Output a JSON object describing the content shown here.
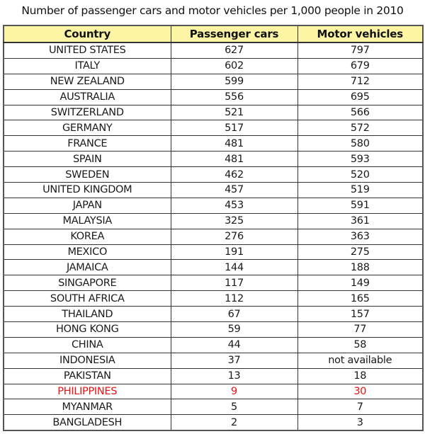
{
  "title": "Number of passenger cars and motor vehicles per 1,000 people in 2010",
  "colors": {
    "header_background": "#fdf5a4",
    "highlight_text": "#ee1111",
    "border": "#333333"
  },
  "table": {
    "headers": [
      "Country",
      "Passenger cars",
      "Motor vehicles"
    ],
    "highlighted_row": "PHILIPPINES",
    "rows": [
      {
        "country": "UNITED STATES",
        "passenger_cars": "627",
        "motor_vehicles": "797"
      },
      {
        "country": "ITALY",
        "passenger_cars": "602",
        "motor_vehicles": "679"
      },
      {
        "country": "NEW ZEALAND",
        "passenger_cars": "599",
        "motor_vehicles": "712"
      },
      {
        "country": "AUSTRALIA",
        "passenger_cars": "556",
        "motor_vehicles": "695"
      },
      {
        "country": "SWITZERLAND",
        "passenger_cars": "521",
        "motor_vehicles": "566"
      },
      {
        "country": "GERMANY",
        "passenger_cars": "517",
        "motor_vehicles": "572"
      },
      {
        "country": "FRANCE",
        "passenger_cars": "481",
        "motor_vehicles": "580"
      },
      {
        "country": "SPAIN",
        "passenger_cars": "481",
        "motor_vehicles": "593"
      },
      {
        "country": "SWEDEN",
        "passenger_cars": "462",
        "motor_vehicles": "520"
      },
      {
        "country": "UNITED KINGDOM",
        "passenger_cars": "457",
        "motor_vehicles": "519"
      },
      {
        "country": "JAPAN",
        "passenger_cars": "453",
        "motor_vehicles": "591"
      },
      {
        "country": "MALAYSIA",
        "passenger_cars": "325",
        "motor_vehicles": "361"
      },
      {
        "country": "KOREA",
        "passenger_cars": "276",
        "motor_vehicles": "363"
      },
      {
        "country": "MEXICO",
        "passenger_cars": "191",
        "motor_vehicles": "275"
      },
      {
        "country": "JAMAICA",
        "passenger_cars": "144",
        "motor_vehicles": "188"
      },
      {
        "country": "SINGAPORE",
        "passenger_cars": "117",
        "motor_vehicles": "149"
      },
      {
        "country": "SOUTH AFRICA",
        "passenger_cars": "112",
        "motor_vehicles": "165"
      },
      {
        "country": "THAILAND",
        "passenger_cars": "67",
        "motor_vehicles": "157"
      },
      {
        "country": "HONG KONG",
        "passenger_cars": "59",
        "motor_vehicles": "77"
      },
      {
        "country": "CHINA",
        "passenger_cars": "44",
        "motor_vehicles": "58"
      },
      {
        "country": "INDONESIA",
        "passenger_cars": "37",
        "motor_vehicles": "not available"
      },
      {
        "country": "PAKISTAN",
        "passenger_cars": "13",
        "motor_vehicles": "18"
      },
      {
        "country": "PHILIPPINES",
        "passenger_cars": "9",
        "motor_vehicles": "30"
      },
      {
        "country": "MYANMAR",
        "passenger_cars": "5",
        "motor_vehicles": "7"
      },
      {
        "country": "BANGLADESH",
        "passenger_cars": "2",
        "motor_vehicles": "3"
      }
    ]
  }
}
